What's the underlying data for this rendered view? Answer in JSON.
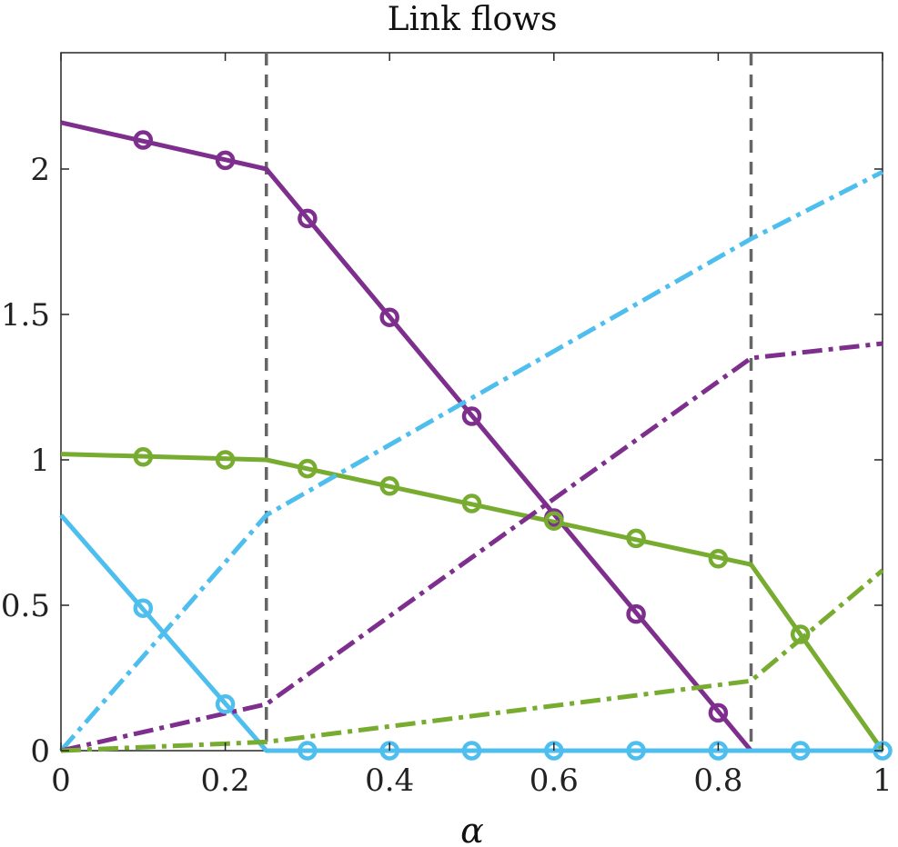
{
  "chart_data": {
    "type": "line",
    "title": "Link flows",
    "xlabel": "α",
    "ylabel": "",
    "xlim": [
      0,
      1
    ],
    "ylim": [
      0,
      2.4
    ],
    "xticks": [
      0,
      0.2,
      0.4,
      0.6,
      0.8,
      1
    ],
    "xtick_labels": [
      "0",
      "0.2",
      "0.4",
      "0.6",
      "0.8",
      "1"
    ],
    "yticks": [
      0,
      0.5,
      1,
      1.5,
      2
    ],
    "ytick_labels": [
      "0",
      "0.5",
      "1",
      "1.5",
      "2"
    ],
    "grid": false,
    "legend": "none",
    "vlines": [
      {
        "x": 0.25,
        "color": "#666666",
        "style": "dashed"
      },
      {
        "x": 0.84,
        "color": "#666666",
        "style": "dashed"
      }
    ],
    "series": [
      {
        "color": "#7E2F8E",
        "style": "solid",
        "marker": "circle",
        "points": [
          [
            0,
            2.16
          ],
          [
            0.25,
            2.0
          ],
          [
            0.84,
            0.0
          ],
          [
            1,
            0.0
          ]
        ],
        "markers": [
          [
            0.1,
            2.1
          ],
          [
            0.2,
            2.03
          ],
          [
            0.3,
            1.83
          ],
          [
            0.4,
            1.49
          ],
          [
            0.5,
            1.15
          ],
          [
            0.6,
            0.8
          ],
          [
            0.7,
            0.47
          ],
          [
            0.8,
            0.13
          ]
        ]
      },
      {
        "color": "#77AC30",
        "style": "solid",
        "marker": "circle",
        "points": [
          [
            0,
            1.02
          ],
          [
            0.25,
            1.0
          ],
          [
            0.84,
            0.64
          ],
          [
            1,
            0.0
          ]
        ],
        "markers": [
          [
            0.1,
            1.01
          ],
          [
            0.2,
            1.0
          ],
          [
            0.3,
            0.97
          ],
          [
            0.4,
            0.91
          ],
          [
            0.5,
            0.85
          ],
          [
            0.6,
            0.79
          ],
          [
            0.7,
            0.73
          ],
          [
            0.8,
            0.66
          ],
          [
            0.9,
            0.4
          ]
        ]
      },
      {
        "color": "#4DBEEE",
        "style": "solid",
        "marker": "circle",
        "points": [
          [
            0,
            0.81
          ],
          [
            0.25,
            0.0
          ],
          [
            1,
            0.0
          ]
        ],
        "markers": [
          [
            0.1,
            0.49
          ],
          [
            0.2,
            0.16
          ],
          [
            0.3,
            0.0
          ],
          [
            0.4,
            0.0
          ],
          [
            0.5,
            0.0
          ],
          [
            0.6,
            0.0
          ],
          [
            0.7,
            0.0
          ],
          [
            0.8,
            0.0
          ],
          [
            0.9,
            0.0
          ],
          [
            1,
            0.0
          ]
        ]
      },
      {
        "color": "#4DBEEE",
        "style": "dashdot",
        "marker": "none",
        "points": [
          [
            0,
            0.0
          ],
          [
            0.25,
            0.81
          ],
          [
            0.84,
            1.76
          ],
          [
            1,
            1.99
          ]
        ],
        "markers": []
      },
      {
        "color": "#7E2F8E",
        "style": "dashdot",
        "marker": "none",
        "points": [
          [
            0,
            0.0
          ],
          [
            0.25,
            0.16
          ],
          [
            0.84,
            1.35
          ],
          [
            1,
            1.4
          ]
        ],
        "markers": []
      },
      {
        "color": "#77AC30",
        "style": "dashdot",
        "marker": "none",
        "points": [
          [
            0,
            0.0
          ],
          [
            0.25,
            0.03
          ],
          [
            0.84,
            0.24
          ],
          [
            1,
            0.62
          ]
        ],
        "markers": []
      }
    ]
  }
}
